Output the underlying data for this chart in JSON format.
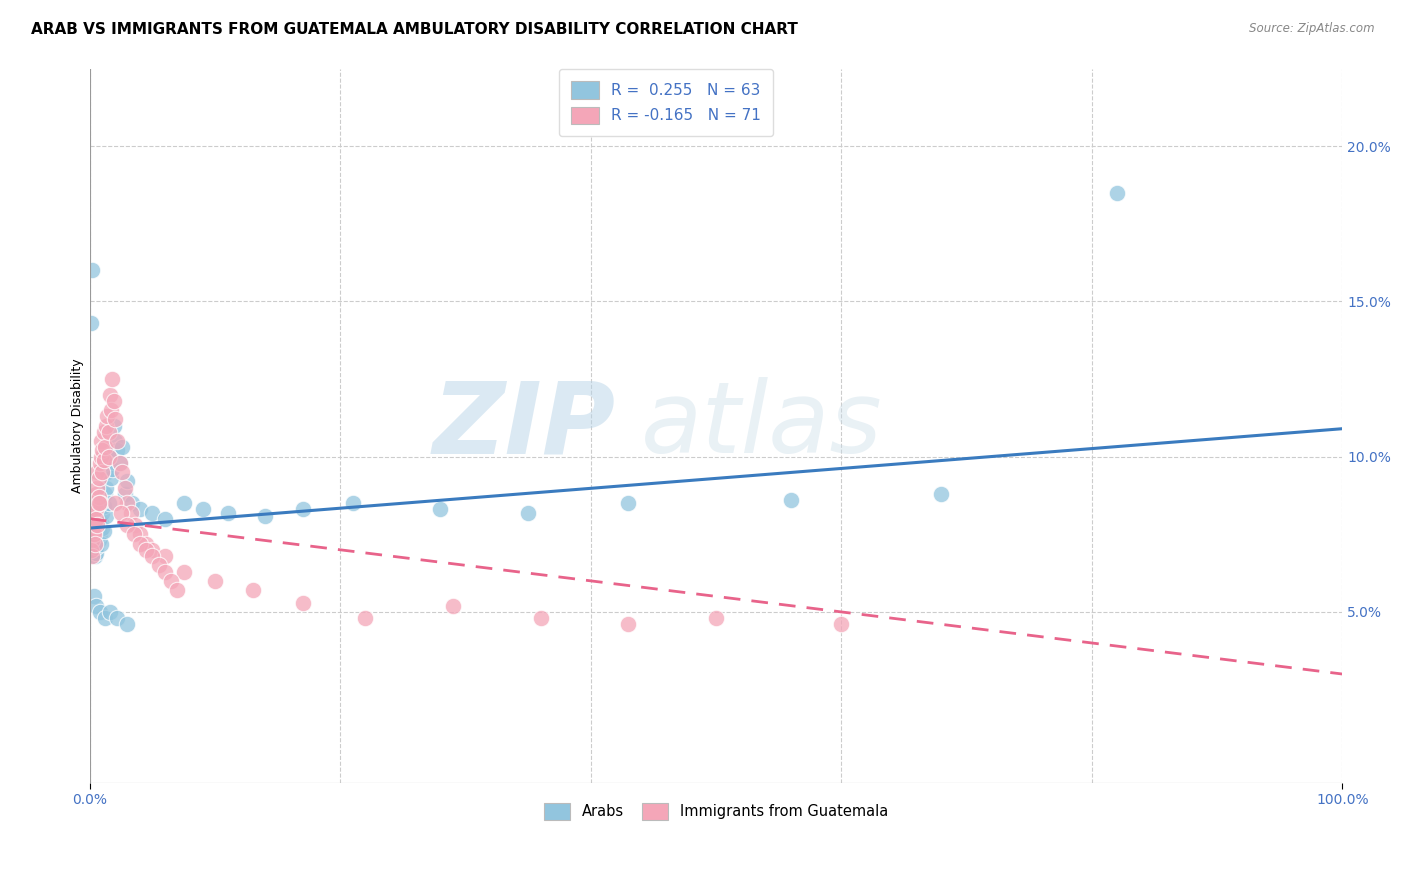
{
  "title": "ARAB VS IMMIGRANTS FROM GUATEMALA AMBULATORY DISABILITY CORRELATION CHART",
  "source": "Source: ZipAtlas.com",
  "ylabel": "Ambulatory Disability",
  "right_yticks": [
    "5.0%",
    "10.0%",
    "15.0%",
    "20.0%"
  ],
  "right_ytick_vals": [
    0.05,
    0.1,
    0.15,
    0.2
  ],
  "legend_r1": "R =  0.255   N = 63",
  "legend_r2": "R = -0.165   N = 71",
  "blue_color": "#92c5de",
  "pink_color": "#f4a6b8",
  "blue_line_color": "#3a7bbf",
  "pink_line_color": "#e8638a",
  "background_color": "#ffffff",
  "grid_color": "#cccccc",
  "xlim": [
    0.0,
    1.0
  ],
  "ylim": [
    -0.005,
    0.225
  ],
  "blue_trend_y_start": 0.077,
  "blue_trend_y_end": 0.109,
  "pink_trend_y_start": 0.08,
  "pink_trend_y_end": 0.03,
  "watermark_zip": "ZIP",
  "watermark_atlas": "atlas",
  "title_fontsize": 11,
  "axis_label_fontsize": 9,
  "tick_fontsize": 10,
  "blue_points_x": [
    0.001,
    0.002,
    0.002,
    0.003,
    0.003,
    0.003,
    0.004,
    0.004,
    0.005,
    0.005,
    0.005,
    0.006,
    0.006,
    0.007,
    0.007,
    0.008,
    0.008,
    0.009,
    0.009,
    0.01,
    0.01,
    0.011,
    0.011,
    0.012,
    0.013,
    0.013,
    0.014,
    0.015,
    0.016,
    0.017,
    0.018,
    0.019,
    0.02,
    0.022,
    0.024,
    0.026,
    0.028,
    0.03,
    0.034,
    0.04,
    0.05,
    0.06,
    0.075,
    0.09,
    0.11,
    0.14,
    0.17,
    0.21,
    0.28,
    0.35,
    0.43,
    0.56,
    0.68,
    0.82,
    0.001,
    0.002,
    0.003,
    0.005,
    0.008,
    0.012,
    0.016,
    0.022,
    0.03
  ],
  "blue_points_y": [
    0.075,
    0.072,
    0.078,
    0.07,
    0.073,
    0.076,
    0.068,
    0.074,
    0.069,
    0.071,
    0.077,
    0.074,
    0.08,
    0.073,
    0.083,
    0.075,
    0.085,
    0.072,
    0.079,
    0.077,
    0.082,
    0.076,
    0.084,
    0.088,
    0.081,
    0.09,
    0.095,
    0.085,
    0.1,
    0.093,
    0.096,
    0.11,
    0.105,
    0.102,
    0.098,
    0.103,
    0.088,
    0.092,
    0.085,
    0.083,
    0.082,
    0.08,
    0.085,
    0.083,
    0.082,
    0.081,
    0.083,
    0.085,
    0.083,
    0.082,
    0.085,
    0.086,
    0.088,
    0.185,
    0.143,
    0.16,
    0.055,
    0.052,
    0.05,
    0.048,
    0.05,
    0.048,
    0.046
  ],
  "pink_points_x": [
    0.001,
    0.001,
    0.002,
    0.002,
    0.003,
    0.003,
    0.004,
    0.004,
    0.005,
    0.005,
    0.006,
    0.006,
    0.007,
    0.007,
    0.008,
    0.008,
    0.009,
    0.009,
    0.01,
    0.01,
    0.011,
    0.011,
    0.012,
    0.013,
    0.014,
    0.015,
    0.015,
    0.016,
    0.017,
    0.018,
    0.019,
    0.02,
    0.022,
    0.024,
    0.026,
    0.028,
    0.03,
    0.033,
    0.036,
    0.04,
    0.045,
    0.05,
    0.06,
    0.075,
    0.1,
    0.13,
    0.17,
    0.22,
    0.02,
    0.025,
    0.03,
    0.035,
    0.04,
    0.045,
    0.05,
    0.055,
    0.06,
    0.065,
    0.07,
    0.29,
    0.36,
    0.43,
    0.5,
    0.6,
    0.001,
    0.002,
    0.003,
    0.004,
    0.005,
    0.006,
    0.007
  ],
  "pink_points_y": [
    0.075,
    0.08,
    0.073,
    0.079,
    0.082,
    0.076,
    0.085,
    0.078,
    0.088,
    0.083,
    0.09,
    0.095,
    0.087,
    0.093,
    0.085,
    0.098,
    0.1,
    0.105,
    0.095,
    0.102,
    0.099,
    0.108,
    0.103,
    0.11,
    0.113,
    0.1,
    0.108,
    0.12,
    0.115,
    0.125,
    0.118,
    0.112,
    0.105,
    0.098,
    0.095,
    0.09,
    0.085,
    0.082,
    0.078,
    0.075,
    0.072,
    0.07,
    0.068,
    0.063,
    0.06,
    0.057,
    0.053,
    0.048,
    0.085,
    0.082,
    0.078,
    0.075,
    0.072,
    0.07,
    0.068,
    0.065,
    0.063,
    0.06,
    0.057,
    0.052,
    0.048,
    0.046,
    0.048,
    0.046,
    0.07,
    0.068,
    0.075,
    0.072,
    0.08,
    0.078,
    0.085
  ]
}
